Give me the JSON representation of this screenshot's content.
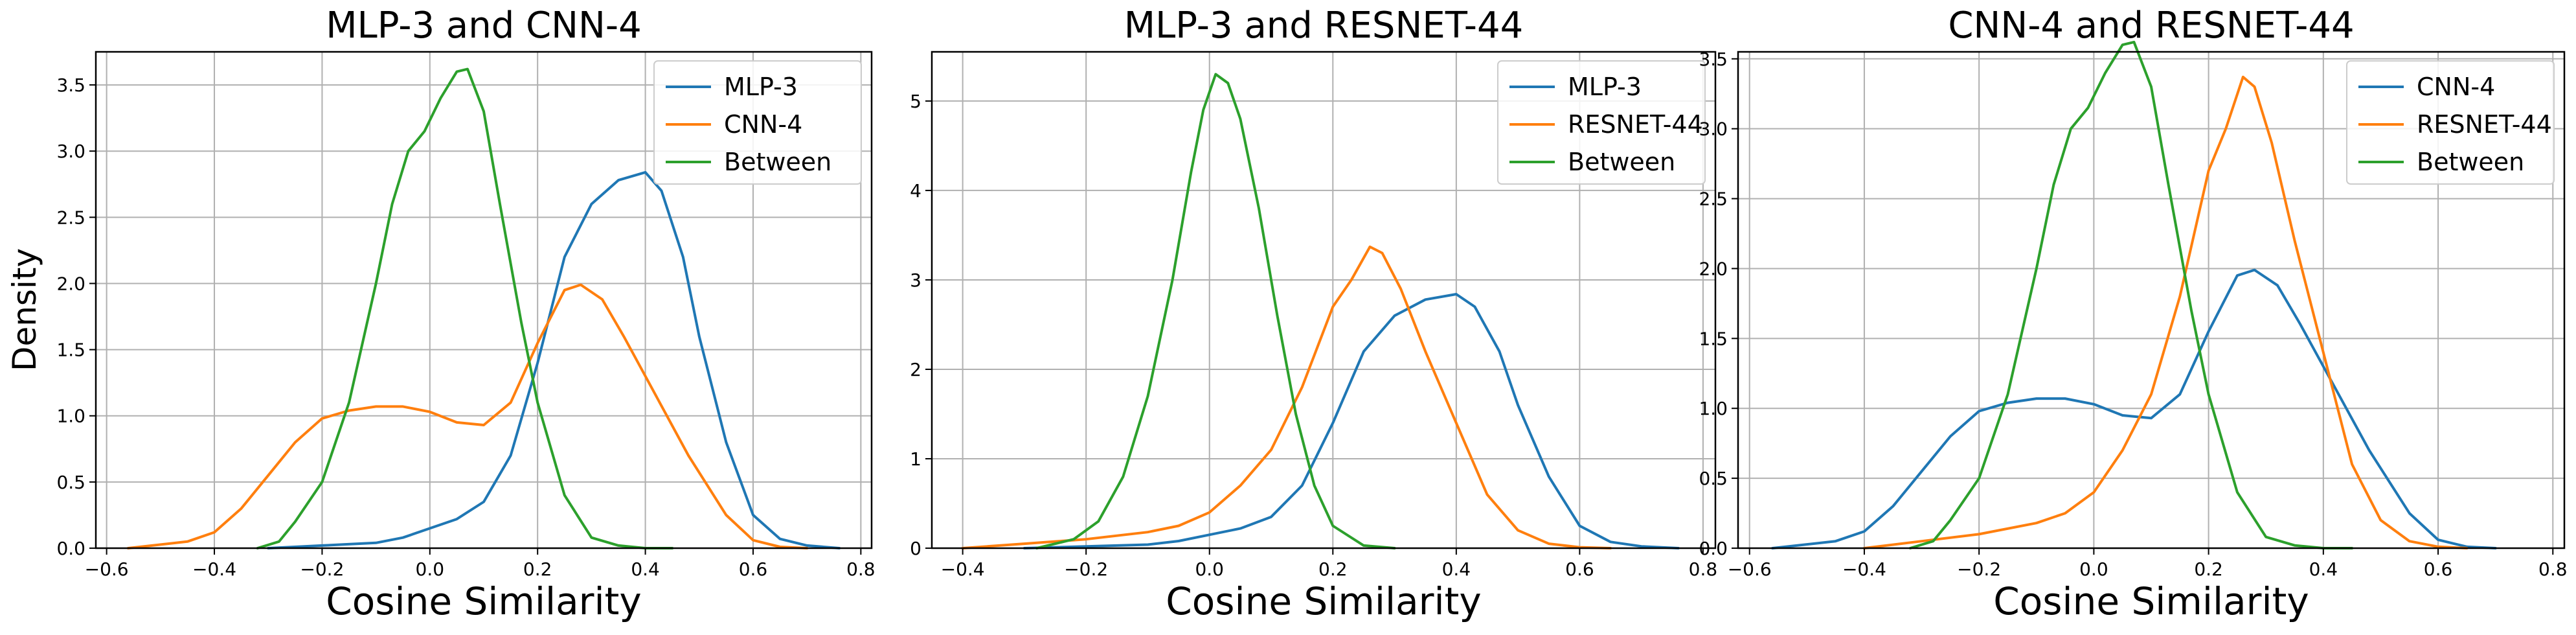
{
  "figure": {
    "ylabel": "Density",
    "xlabel": "Cosine Similarity"
  },
  "chart_data": [
    {
      "type": "line",
      "title": "MLP-3 and CNN-4",
      "xlabel": "Cosine Similarity",
      "ylabel": "Density",
      "xlim": [
        -0.62,
        0.82
      ],
      "ylim": [
        0,
        3.75
      ],
      "xticks": [
        -0.6,
        -0.4,
        -0.2,
        0.0,
        0.2,
        0.4,
        0.6,
        0.8
      ],
      "xtick_labels": [
        "−0.6",
        "−0.4",
        "−0.2",
        "0.0",
        "0.2",
        "0.4",
        "0.6",
        "0.8"
      ],
      "yticks": [
        0,
        0.5,
        1.0,
        1.5,
        2.0,
        2.5,
        3.0,
        3.5
      ],
      "ytick_labels": [
        "0.0",
        "0.5",
        "1.0",
        "1.5",
        "2.0",
        "2.5",
        "3.0",
        "3.5"
      ],
      "grid": true,
      "legend": "top-right",
      "series": [
        {
          "name": "MLP-3",
          "color": "#1f77b4",
          "x": [
            -0.3,
            -0.2,
            -0.1,
            -0.05,
            0.0,
            0.05,
            0.1,
            0.15,
            0.2,
            0.25,
            0.3,
            0.35,
            0.4,
            0.43,
            0.47,
            0.5,
            0.55,
            0.6,
            0.65,
            0.7,
            0.76
          ],
          "y": [
            0.0,
            0.02,
            0.04,
            0.08,
            0.15,
            0.22,
            0.35,
            0.7,
            1.4,
            2.2,
            2.6,
            2.78,
            2.84,
            2.7,
            2.2,
            1.6,
            0.8,
            0.25,
            0.07,
            0.02,
            0.0
          ]
        },
        {
          "name": "CNN-4",
          "color": "#ff7f0e",
          "x": [
            -0.56,
            -0.45,
            -0.4,
            -0.35,
            -0.3,
            -0.25,
            -0.2,
            -0.15,
            -0.1,
            -0.05,
            0.0,
            0.05,
            0.1,
            0.15,
            0.2,
            0.25,
            0.28,
            0.32,
            0.36,
            0.42,
            0.48,
            0.55,
            0.6,
            0.65,
            0.7
          ],
          "y": [
            0.0,
            0.05,
            0.12,
            0.3,
            0.55,
            0.8,
            0.98,
            1.04,
            1.07,
            1.07,
            1.03,
            0.95,
            0.93,
            1.1,
            1.55,
            1.95,
            1.99,
            1.88,
            1.6,
            1.15,
            0.7,
            0.25,
            0.06,
            0.01,
            0.0
          ]
        },
        {
          "name": "Between",
          "color": "#2ca02c",
          "x": [
            -0.32,
            -0.28,
            -0.25,
            -0.2,
            -0.15,
            -0.1,
            -0.07,
            -0.04,
            -0.01,
            0.02,
            0.05,
            0.07,
            0.1,
            0.13,
            0.17,
            0.2,
            0.25,
            0.3,
            0.35,
            0.4,
            0.45
          ],
          "y": [
            0.0,
            0.05,
            0.2,
            0.5,
            1.1,
            2.0,
            2.6,
            3.0,
            3.15,
            3.4,
            3.6,
            3.62,
            3.3,
            2.6,
            1.7,
            1.1,
            0.4,
            0.08,
            0.02,
            0.0,
            0.0
          ]
        }
      ]
    },
    {
      "type": "line",
      "title": "MLP-3 and RESNET-44",
      "xlabel": "Cosine Similarity",
      "ylabel": "",
      "xlim": [
        -0.45,
        0.82
      ],
      "ylim": [
        0,
        5.55
      ],
      "xticks": [
        -0.4,
        -0.2,
        0.0,
        0.2,
        0.4,
        0.6,
        0.8
      ],
      "xtick_labels": [
        "−0.4",
        "−0.2",
        "0.0",
        "0.2",
        "0.4",
        "0.6",
        "0.8"
      ],
      "yticks": [
        0,
        1,
        2,
        3,
        4,
        5
      ],
      "ytick_labels": [
        "0",
        "1",
        "2",
        "3",
        "4",
        "5"
      ],
      "grid": true,
      "legend": "top-right",
      "series": [
        {
          "name": "MLP-3",
          "color": "#1f77b4",
          "x": [
            -0.3,
            -0.2,
            -0.1,
            -0.05,
            0.0,
            0.05,
            0.1,
            0.15,
            0.2,
            0.25,
            0.3,
            0.35,
            0.4,
            0.43,
            0.47,
            0.5,
            0.55,
            0.6,
            0.65,
            0.7,
            0.76
          ],
          "y": [
            0.0,
            0.02,
            0.04,
            0.08,
            0.15,
            0.22,
            0.35,
            0.7,
            1.4,
            2.2,
            2.6,
            2.78,
            2.84,
            2.7,
            2.2,
            1.6,
            0.8,
            0.25,
            0.07,
            0.02,
            0.0
          ]
        },
        {
          "name": "RESNET-44",
          "color": "#ff7f0e",
          "x": [
            -0.4,
            -0.3,
            -0.2,
            -0.1,
            -0.05,
            0.0,
            0.05,
            0.1,
            0.15,
            0.2,
            0.23,
            0.26,
            0.28,
            0.31,
            0.35,
            0.4,
            0.45,
            0.5,
            0.55,
            0.6,
            0.65
          ],
          "y": [
            0.0,
            0.05,
            0.1,
            0.18,
            0.25,
            0.4,
            0.7,
            1.1,
            1.8,
            2.7,
            3.0,
            3.37,
            3.3,
            2.9,
            2.2,
            1.4,
            0.6,
            0.2,
            0.05,
            0.01,
            0.0
          ]
        },
        {
          "name": "Between",
          "color": "#2ca02c",
          "x": [
            -0.28,
            -0.22,
            -0.18,
            -0.14,
            -0.1,
            -0.06,
            -0.03,
            -0.01,
            0.01,
            0.03,
            0.05,
            0.08,
            0.11,
            0.14,
            0.17,
            0.2,
            0.25,
            0.3
          ],
          "y": [
            0.0,
            0.1,
            0.3,
            0.8,
            1.7,
            3.0,
            4.2,
            4.9,
            5.3,
            5.2,
            4.8,
            3.8,
            2.6,
            1.5,
            0.7,
            0.25,
            0.03,
            0.0
          ]
        }
      ]
    },
    {
      "type": "line",
      "title": "CNN-4 and RESNET-44",
      "xlabel": "Cosine Similarity",
      "ylabel": "",
      "xlim": [
        -0.62,
        0.82
      ],
      "ylim": [
        0,
        3.55
      ],
      "xticks": [
        -0.6,
        -0.4,
        -0.2,
        0.0,
        0.2,
        0.4,
        0.6,
        0.8
      ],
      "xtick_labels": [
        "−0.6",
        "−0.4",
        "−0.2",
        "0.0",
        "0.2",
        "0.4",
        "0.6",
        "0.8"
      ],
      "yticks": [
        0,
        0.5,
        1.0,
        1.5,
        2.0,
        2.5,
        3.0,
        3.5
      ],
      "ytick_labels": [
        "0.0",
        "0.5",
        "1.0",
        "1.5",
        "2.0",
        "2.5",
        "3.0",
        "3.5"
      ],
      "grid": true,
      "legend": "top-right",
      "series": [
        {
          "name": "CNN-4",
          "color": "#1f77b4",
          "x": [
            -0.56,
            -0.45,
            -0.4,
            -0.35,
            -0.3,
            -0.25,
            -0.2,
            -0.15,
            -0.1,
            -0.05,
            0.0,
            0.05,
            0.1,
            0.15,
            0.2,
            0.25,
            0.28,
            0.32,
            0.36,
            0.42,
            0.48,
            0.55,
            0.6,
            0.65,
            0.7
          ],
          "y": [
            0.0,
            0.05,
            0.12,
            0.3,
            0.55,
            0.8,
            0.98,
            1.04,
            1.07,
            1.07,
            1.03,
            0.95,
            0.93,
            1.1,
            1.55,
            1.95,
            1.99,
            1.88,
            1.6,
            1.15,
            0.7,
            0.25,
            0.06,
            0.01,
            0.0
          ]
        },
        {
          "name": "RESNET-44",
          "color": "#ff7f0e",
          "x": [
            -0.4,
            -0.3,
            -0.2,
            -0.1,
            -0.05,
            0.0,
            0.05,
            0.1,
            0.15,
            0.2,
            0.23,
            0.26,
            0.28,
            0.31,
            0.35,
            0.4,
            0.45,
            0.5,
            0.55,
            0.6,
            0.65
          ],
          "y": [
            0.0,
            0.05,
            0.1,
            0.18,
            0.25,
            0.4,
            0.7,
            1.1,
            1.8,
            2.7,
            3.0,
            3.37,
            3.3,
            2.9,
            2.2,
            1.4,
            0.6,
            0.2,
            0.05,
            0.01,
            0.0
          ]
        },
        {
          "name": "Between",
          "color": "#2ca02c",
          "x": [
            -0.32,
            -0.28,
            -0.25,
            -0.2,
            -0.15,
            -0.1,
            -0.07,
            -0.04,
            -0.01,
            0.02,
            0.05,
            0.07,
            0.1,
            0.13,
            0.17,
            0.2,
            0.25,
            0.3,
            0.35,
            0.4,
            0.45
          ],
          "y": [
            0.0,
            0.05,
            0.2,
            0.5,
            1.1,
            2.0,
            2.6,
            3.0,
            3.15,
            3.4,
            3.6,
            3.62,
            3.3,
            2.6,
            1.7,
            1.1,
            0.4,
            0.08,
            0.02,
            0.0,
            0.0
          ]
        }
      ]
    }
  ]
}
